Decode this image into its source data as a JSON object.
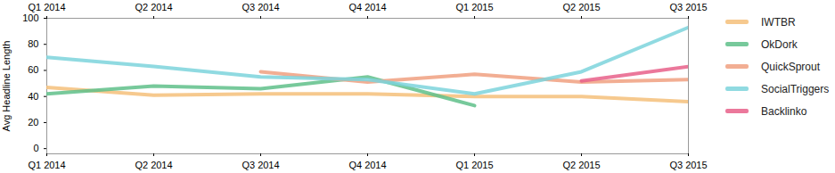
{
  "chart_data": {
    "type": "line",
    "y_label": "Avg Headline Length",
    "categories": [
      "Q1 2014",
      "Q2 2014",
      "Q3 2014",
      "Q4 2014",
      "Q1 2015",
      "Q2 2015",
      "Q3 2015"
    ],
    "series": [
      {
        "name": "IWTBR",
        "color": "#f5c07a",
        "values": [
          47,
          41,
          42,
          42,
          40,
          40,
          36
        ]
      },
      {
        "name": "OkDork",
        "color": "#5fbf8a",
        "values": [
          42,
          48,
          46,
          55,
          33,
          null,
          null
        ]
      },
      {
        "name": "QuickSprout",
        "color": "#f0a080",
        "values": [
          null,
          null,
          59,
          51,
          57,
          51,
          53
        ]
      },
      {
        "name": "SocialTriggers",
        "color": "#7dd3dc",
        "values": [
          70,
          63,
          55,
          53,
          42,
          59,
          93
        ]
      },
      {
        "name": "Backlinko",
        "color": "#e8608a",
        "values": [
          null,
          null,
          null,
          null,
          null,
          52,
          63
        ]
      }
    ],
    "ylim": [
      -4,
      100
    ],
    "yticks": [
      0,
      20,
      40,
      60,
      80,
      100
    ],
    "grid": false,
    "legend": "right"
  }
}
